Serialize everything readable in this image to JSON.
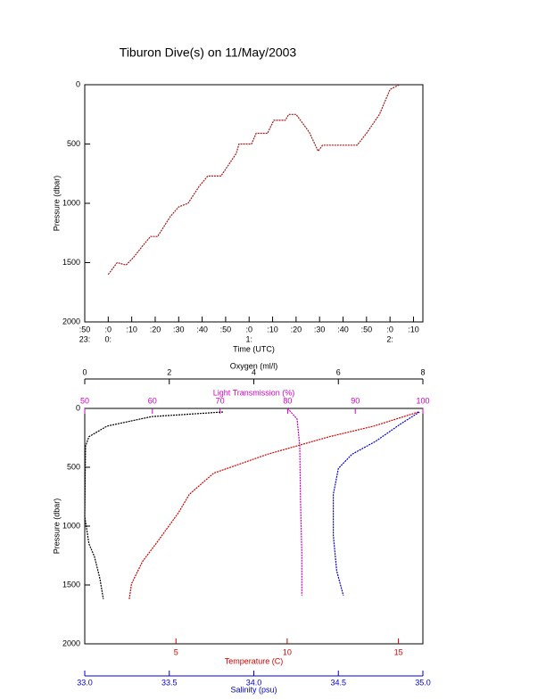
{
  "chart_data": [
    {
      "type": "line",
      "title": "Tiburon Dive(s) on 11/May/2003",
      "y_label": "Pressure (dbar)",
      "x_label": "Time (UTC)",
      "ylim": [
        2000,
        0
      ],
      "yticks": [
        0,
        500,
        1000,
        1500,
        2000
      ],
      "xlim": [
        -10,
        134
      ],
      "xticks": [
        {
          "value": -10,
          "label": ":50",
          "hour": "23:"
        },
        {
          "value": 0,
          "label": ":0",
          "hour": "0:"
        },
        {
          "value": 10,
          "label": ":10"
        },
        {
          "value": 20,
          "label": ":20"
        },
        {
          "value": 30,
          "label": ":30"
        },
        {
          "value": 40,
          "label": ":40"
        },
        {
          "value": 50,
          "label": ":50"
        },
        {
          "value": 60,
          "label": ":0",
          "hour": "1:"
        },
        {
          "value": 70,
          "label": ":10"
        },
        {
          "value": 80,
          "label": ":20"
        },
        {
          "value": 90,
          "label": ":30"
        },
        {
          "value": 100,
          "label": ":40"
        },
        {
          "value": 110,
          "label": ":50"
        },
        {
          "value": 120,
          "label": ":0",
          "hour": "2:"
        },
        {
          "value": 130,
          "label": ":10"
        }
      ],
      "color": "#a01818",
      "x": [
        0,
        3.8,
        7.6,
        10.6,
        15,
        18,
        21,
        26.5,
        30,
        34,
        38.6,
        42.4,
        48,
        54.5,
        55.7,
        61,
        63,
        67.8,
        70.5,
        75.4,
        76.9,
        80,
        85.6,
        89.4,
        91.3,
        106,
        110,
        115.5,
        120,
        124
      ],
      "values": [
        1600,
        1500,
        1520,
        1460,
        1350,
        1280,
        1280,
        1110,
        1030,
        1000,
        860,
        770,
        770,
        580,
        500,
        500,
        410,
        410,
        300,
        300,
        250,
        250,
        400,
        560,
        510,
        510,
        410,
        250,
        40,
        0
      ]
    },
    {
      "type": "profile",
      "y_label": "Pressure (dbar)",
      "ylim": [
        2000,
        0
      ],
      "yticks": [
        0,
        500,
        1000,
        1500,
        2000
      ],
      "axes": [
        {
          "label": "Oxygen (ml/l)",
          "color": "#000000",
          "xlim": [
            0,
            8
          ],
          "xticks": [
            0,
            2,
            4,
            6,
            8
          ]
        },
        {
          "label": "Light Transmission (%)",
          "color": "#d000c0",
          "xlim": [
            50,
            100
          ],
          "xticks": [
            50,
            60,
            70,
            80,
            90,
            100
          ]
        },
        {
          "label": "Temperature (C)",
          "color": "#d00000",
          "xlim": [
            0.9,
            16.1
          ],
          "xticks": [
            5,
            10,
            15
          ]
        },
        {
          "label": "Salinity (psu)",
          "color": "#0000d0",
          "xlim": [
            33,
            35
          ],
          "xticks": [
            {
              "value": 33,
              "label": "33.0"
            },
            {
              "value": 33.5,
              "label": "33.5"
            },
            {
              "value": 34,
              "label": "34.0"
            },
            {
              "value": 34.5,
              "label": "34.5"
            },
            {
              "value": 35,
              "label": "35.0"
            }
          ]
        }
      ],
      "series": [
        {
          "axis": 0,
          "color": "#000000",
          "x": [
            3.27,
            1.58,
            0.53,
            0.1,
            0.02,
            0.0,
            0.1,
            0.23,
            0.36,
            0.44
          ],
          "values": [
            30,
            70,
            150,
            240,
            320,
            920,
            1150,
            1260,
            1450,
            1620
          ]
        },
        {
          "axis": 1,
          "color": "#d000c0",
          "x": [
            80.0,
            81.4,
            81.8,
            81.9,
            82.1,
            82.1
          ],
          "values": [
            0,
            90,
            320,
            770,
            1230,
            1590
          ]
        },
        {
          "axis": 2,
          "color": "#d00000",
          "x": [
            15.9,
            13.9,
            11.9,
            9.1,
            6.7,
            5.6,
            5.1,
            4.1,
            3.5,
            3.0,
            2.9
          ],
          "values": [
            30,
            150,
            240,
            390,
            550,
            730,
            890,
            1150,
            1300,
            1490,
            1620
          ]
        },
        {
          "axis": 3,
          "color": "#0000d0",
          "x": [
            34.98,
            34.87,
            34.72,
            34.58,
            34.5,
            34.47,
            34.47,
            34.49,
            34.53
          ],
          "values": [
            30,
            130,
            280,
            390,
            510,
            730,
            1080,
            1380,
            1590
          ]
        }
      ]
    }
  ]
}
